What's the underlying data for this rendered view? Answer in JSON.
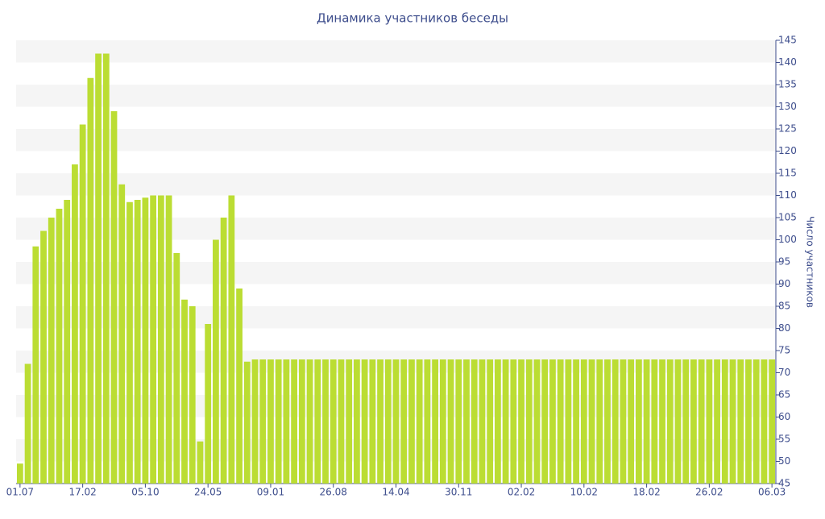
{
  "chart_data": {
    "type": "bar",
    "title": "Динамика участников беседы",
    "y_label": "Число участников",
    "categories": [
      "01.07",
      null,
      null,
      null,
      null,
      null,
      null,
      null,
      "17.02",
      null,
      null,
      null,
      null,
      null,
      null,
      null,
      "05.10",
      null,
      null,
      null,
      null,
      null,
      null,
      null,
      "24.05",
      null,
      null,
      null,
      null,
      null,
      null,
      null,
      "09.01",
      null,
      null,
      null,
      null,
      null,
      null,
      null,
      "26.08",
      null,
      null,
      null,
      null,
      null,
      null,
      null,
      "14.04",
      null,
      null,
      null,
      null,
      null,
      null,
      null,
      "30.11",
      null,
      null,
      null,
      null,
      null,
      null,
      null,
      "02.02",
      null,
      null,
      null,
      null,
      null,
      null,
      null,
      "10.02",
      null,
      null,
      null,
      null,
      null,
      null,
      null,
      "18.02",
      null,
      null,
      null,
      null,
      null,
      null,
      null,
      "26.02",
      null,
      null,
      null,
      null,
      null,
      null,
      null,
      "06.03"
    ],
    "values": [
      49.5,
      72,
      98.5,
      102,
      105,
      107,
      109,
      117,
      126,
      136.5,
      142,
      142,
      129,
      112.5,
      108.5,
      109,
      109.5,
      110,
      110,
      110,
      97,
      86.5,
      85,
      54.5,
      81,
      100,
      105,
      110,
      89,
      72.5,
      73,
      73,
      73,
      73,
      73,
      73,
      73,
      73,
      73,
      73,
      73,
      73,
      73,
      73,
      73,
      73,
      73,
      73,
      73,
      73,
      73,
      73,
      73,
      73,
      73,
      73,
      73,
      73,
      73,
      73,
      73,
      73,
      73,
      73,
      73,
      73,
      73,
      73,
      73,
      73,
      73,
      73,
      73,
      73,
      73,
      73,
      73,
      73,
      73,
      73,
      73,
      73,
      73,
      73,
      73,
      73,
      73,
      73,
      73,
      73,
      73,
      73,
      73,
      73,
      73,
      73,
      73
    ],
    "color": "#bbdd33",
    "ylim": [
      45,
      145
    ],
    "yticks": [
      45,
      50,
      55,
      60,
      65,
      70,
      75,
      80,
      85,
      90,
      95,
      100,
      105,
      110,
      115,
      120,
      125,
      130,
      135,
      140,
      145
    ],
    "grid": "bands",
    "y_axis_side": "right"
  }
}
